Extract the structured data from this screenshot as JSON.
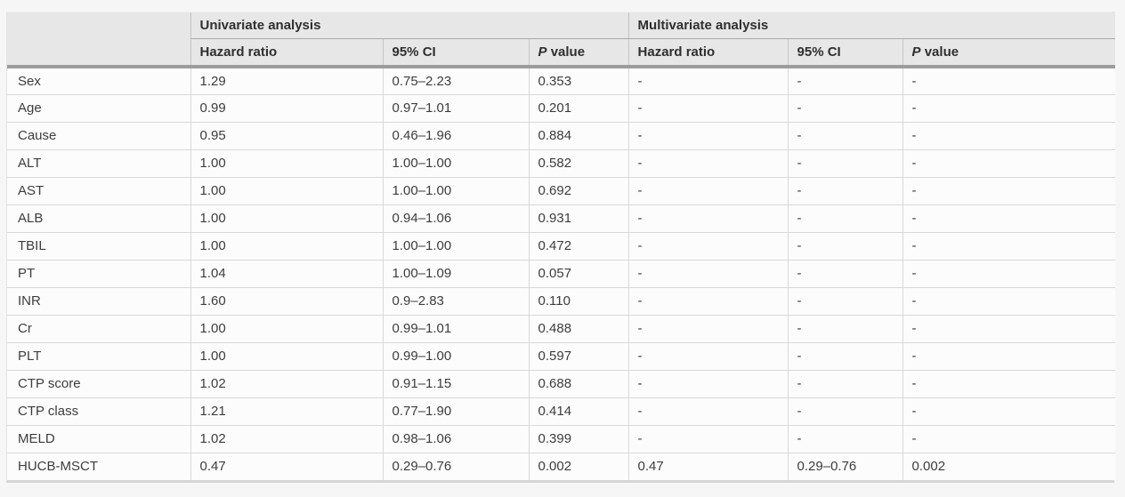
{
  "table": {
    "corner_label": "",
    "group_headers": {
      "univariate": "Univariate analysis",
      "multivariate": "Multivariate analysis"
    },
    "sub_headers": {
      "hazard_ratio": "Hazard ratio",
      "ci": "95% CI",
      "p_italic": "P",
      "p_rest": "value"
    },
    "rows": [
      {
        "variable": "Sex",
        "u_hr": "1.29",
        "u_ci": "0.75–2.23",
        "u_p": "0.353",
        "m_hr": "-",
        "m_ci": "-",
        "m_p": "-"
      },
      {
        "variable": "Age",
        "u_hr": "0.99",
        "u_ci": "0.97–1.01",
        "u_p": "0.201",
        "m_hr": "-",
        "m_ci": "-",
        "m_p": "-"
      },
      {
        "variable": "Cause",
        "u_hr": "0.95",
        "u_ci": "0.46–1.96",
        "u_p": "0.884",
        "m_hr": "-",
        "m_ci": "-",
        "m_p": "-"
      },
      {
        "variable": "ALT",
        "u_hr": "1.00",
        "u_ci": "1.00–1.00",
        "u_p": "0.582",
        "m_hr": "-",
        "m_ci": "-",
        "m_p": "-"
      },
      {
        "variable": "AST",
        "u_hr": "1.00",
        "u_ci": "1.00–1.00",
        "u_p": "0.692",
        "m_hr": "-",
        "m_ci": "-",
        "m_p": "-"
      },
      {
        "variable": "ALB",
        "u_hr": "1.00",
        "u_ci": "0.94–1.06",
        "u_p": "0.931",
        "m_hr": "-",
        "m_ci": "-",
        "m_p": "-"
      },
      {
        "variable": "TBIL",
        "u_hr": "1.00",
        "u_ci": "1.00–1.00",
        "u_p": "0.472",
        "m_hr": "-",
        "m_ci": "-",
        "m_p": "-"
      },
      {
        "variable": "PT",
        "u_hr": "1.04",
        "u_ci": "1.00–1.09",
        "u_p": "0.057",
        "m_hr": "-",
        "m_ci": "-",
        "m_p": "-"
      },
      {
        "variable": "INR",
        "u_hr": "1.60",
        "u_ci": "0.9–2.83",
        "u_p": "0.110",
        "m_hr": "-",
        "m_ci": "-",
        "m_p": "-"
      },
      {
        "variable": "Cr",
        "u_hr": "1.00",
        "u_ci": "0.99–1.01",
        "u_p": "0.488",
        "m_hr": "-",
        "m_ci": "-",
        "m_p": "-"
      },
      {
        "variable": "PLT",
        "u_hr": "1.00",
        "u_ci": "0.99–1.00",
        "u_p": "0.597",
        "m_hr": "-",
        "m_ci": "-",
        "m_p": "-"
      },
      {
        "variable": "CTP score",
        "u_hr": "1.02",
        "u_ci": "0.91–1.15",
        "u_p": "0.688",
        "m_hr": "-",
        "m_ci": "-",
        "m_p": "-"
      },
      {
        "variable": "CTP class",
        "u_hr": "1.21",
        "u_ci": "0.77–1.90",
        "u_p": "0.414",
        "m_hr": "-",
        "m_ci": "-",
        "m_p": "-"
      },
      {
        "variable": "MELD",
        "u_hr": "1.02",
        "u_ci": "0.98–1.06",
        "u_p": "0.399",
        "m_hr": "-",
        "m_ci": "-",
        "m_p": "-"
      },
      {
        "variable": "HUCB-MSCT",
        "u_hr": "0.47",
        "u_ci": "0.29–0.76",
        "u_p": "0.002",
        "m_hr": "0.47",
        "m_ci": "0.29–0.76",
        "m_p": "0.002"
      }
    ],
    "colors": {
      "page_bg": "#f6f6f6",
      "header_bg": "#e7e7e7",
      "thick_rule": "#9c9c9c",
      "grid_line": "#d9d9d9",
      "header_line": "#c3c3c3",
      "text": "#3d3d3d"
    }
  }
}
